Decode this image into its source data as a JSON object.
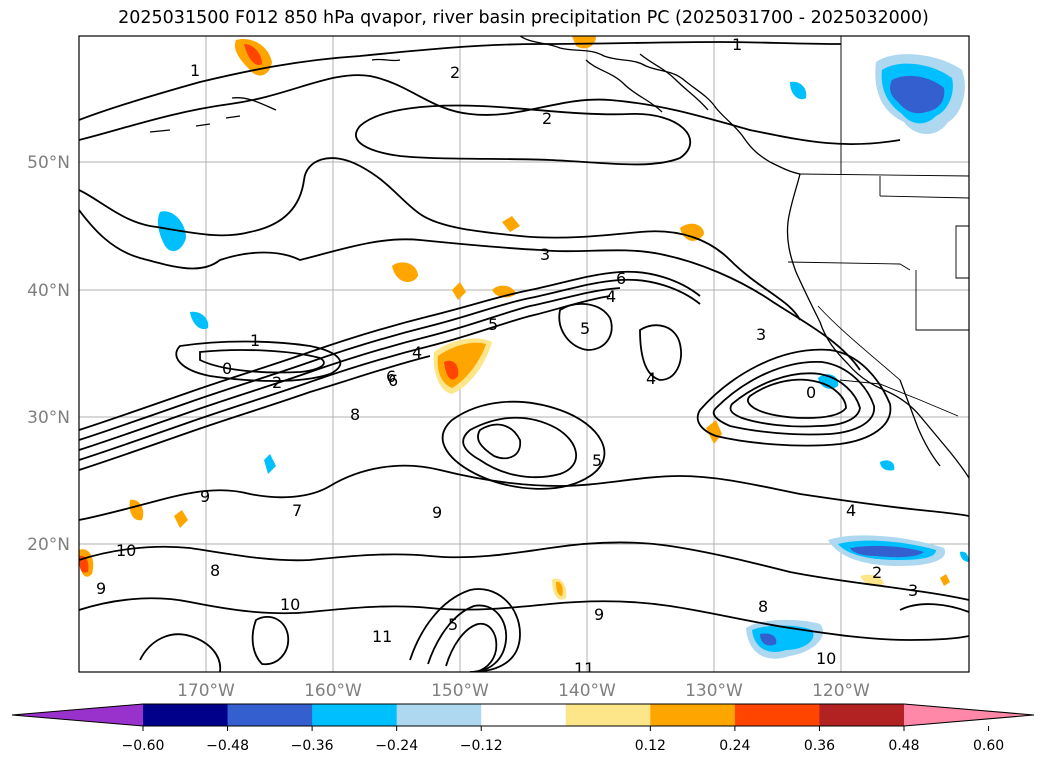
{
  "title": "2025031500 F012 850 hPa qvapor, river basin precipitation PC (2025031700 - 2025032000)",
  "map": {
    "lon_labels": [
      "170°W",
      "160°W",
      "150°W",
      "140°W",
      "130°W",
      "120°W"
    ],
    "lat_labels": [
      "50°N",
      "40°N",
      "30°N",
      "20°N"
    ],
    "gridline_color": "#b0b0b0",
    "land_border_color": "#000000"
  },
  "colorbar": {
    "colors": [
      "#9932cc",
      "#00008b",
      "#3460cf",
      "#00bfff",
      "#add8f0",
      "#ffffff",
      "#fde68a",
      "#ffa500",
      "#ff4500",
      "#b22222",
      "#ff88a8"
    ],
    "ticks": [
      "−0.60",
      "−0.48",
      "−0.36",
      "−0.24",
      "−0.12",
      "0.12",
      "0.24",
      "0.36",
      "0.48",
      "0.60"
    ],
    "extend": "both"
  },
  "contour_labels": [
    "1",
    "1",
    "2",
    "2",
    "3",
    "3",
    "4",
    "4",
    "5",
    "5",
    "6",
    "6",
    "8",
    "8",
    "9",
    "9",
    "10",
    "10",
    "11",
    "0",
    "0",
    "1",
    "2",
    "4",
    "5",
    "6",
    "9",
    "3",
    "2",
    "4",
    "10",
    "11",
    "9",
    "8",
    "7",
    "5"
  ]
}
